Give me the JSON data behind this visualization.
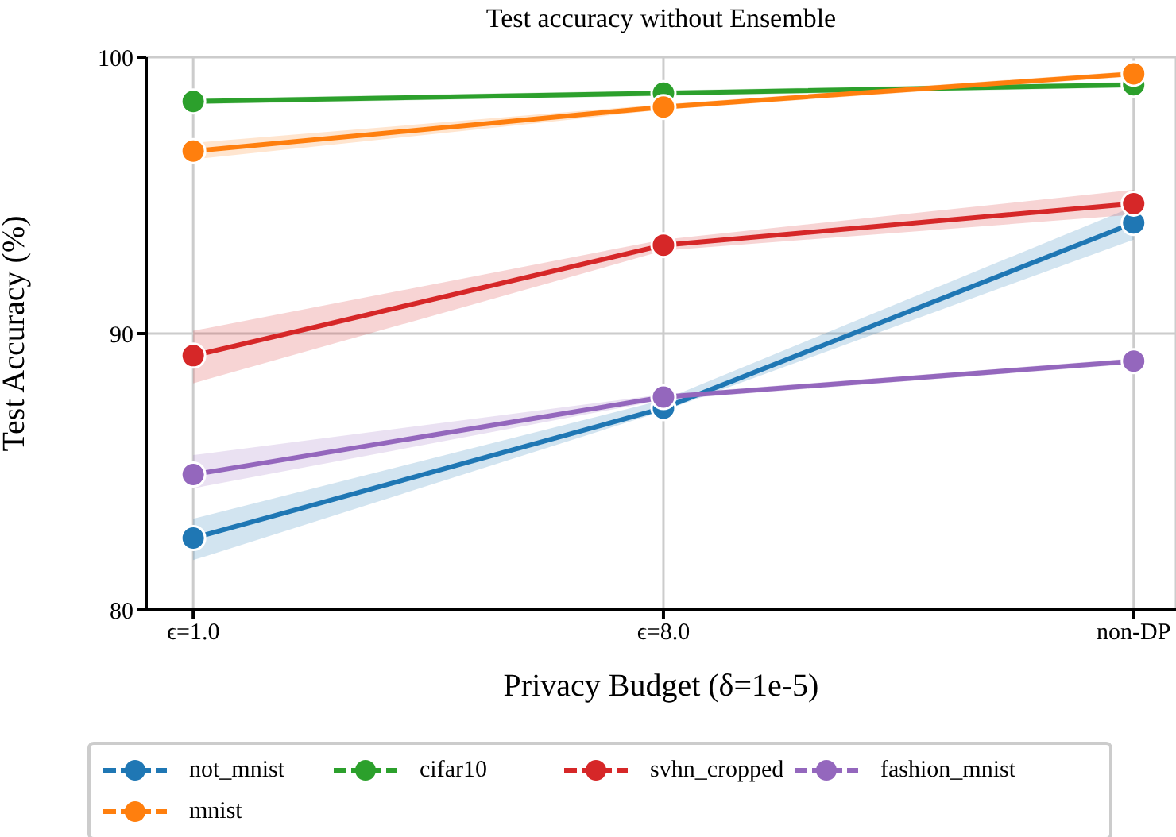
{
  "chart_data": {
    "type": "line",
    "title": "Test accuracy without Ensemble",
    "xlabel": "Privacy Budget (δ=1e-5)",
    "ylabel": "Test Accuracy (%)",
    "categories": [
      "ϵ=1.0",
      "ϵ=8.0",
      "non-DP"
    ],
    "series": [
      {
        "name": "not_mnist",
        "color": "#1f77b4",
        "values": [
          82.6,
          87.3,
          94.0
        ],
        "lower": [
          81.8,
          87.2,
          93.4
        ],
        "upper": [
          83.3,
          87.6,
          94.6
        ]
      },
      {
        "name": "cifar10",
        "color": "#2ca02c",
        "values": [
          98.4,
          98.7,
          99.0
        ],
        "lower": [
          98.3,
          98.6,
          98.9
        ],
        "upper": [
          98.5,
          98.8,
          99.1
        ]
      },
      {
        "name": "svhn_cropped",
        "color": "#d62728",
        "values": [
          89.2,
          93.2,
          94.7
        ],
        "lower": [
          88.2,
          93.0,
          94.3
        ],
        "upper": [
          90.1,
          93.4,
          95.2
        ]
      },
      {
        "name": "fashion_mnist",
        "color": "#9467bd",
        "values": [
          84.9,
          87.7,
          89.0
        ],
        "lower": [
          84.4,
          87.6,
          88.9
        ],
        "upper": [
          85.6,
          87.8,
          89.1
        ]
      },
      {
        "name": "mnist",
        "color": "#ff7f0e",
        "values": [
          96.6,
          98.2,
          99.4
        ],
        "lower": [
          96.3,
          98.1,
          99.3
        ],
        "upper": [
          96.9,
          98.3,
          99.5
        ]
      }
    ],
    "ylim": [
      80,
      100
    ],
    "yticks": [
      80,
      90,
      100
    ],
    "grid": true,
    "legend": "bottom",
    "marker": "circle",
    "line_style": "solid"
  }
}
